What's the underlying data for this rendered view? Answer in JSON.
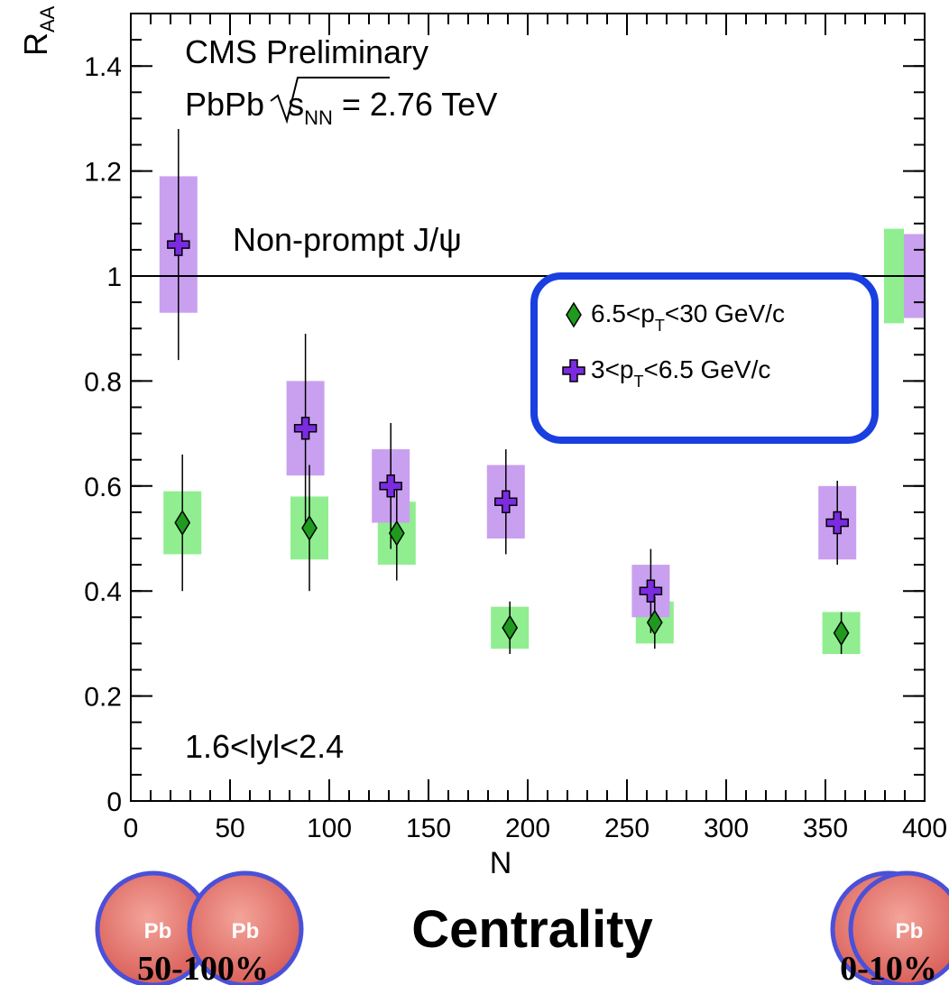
{
  "chart_data": {
    "type": "errorbar",
    "y_label": [
      "R",
      "AA"
    ],
    "x_label": "N",
    "annotations": {
      "experiment": "CMS Preliminary",
      "energy": [
        "PbPb",
        "s",
        "NN",
        " = 2.76 TeV"
      ],
      "particle": "Non-prompt J/ψ",
      "rapidity": "1.6<lyl<2.4"
    },
    "xlim": [
      0,
      400
    ],
    "ylim": [
      0,
      1.5
    ],
    "xticks": [
      0,
      50,
      100,
      150,
      200,
      250,
      300,
      350,
      400
    ],
    "yticks": [
      0,
      0.2,
      0.4,
      0.6,
      0.8,
      1,
      1.2,
      1.4
    ],
    "reference_line": 1,
    "series": [
      {
        "name": [
          "6.5<p",
          "T",
          "<30 GeV/c"
        ],
        "marker": "diamond",
        "color": "#1f9a1f",
        "box_color": "#90ee90",
        "x": [
          26,
          90,
          134,
          191,
          264,
          358
        ],
        "values": [
          0.53,
          0.52,
          0.51,
          0.33,
          0.34,
          0.32
        ],
        "errors": [
          0.13,
          0.12,
          0.09,
          0.05,
          0.05,
          0.04
        ],
        "sys_errors": [
          0.06,
          0.06,
          0.06,
          0.04,
          0.04,
          0.04
        ],
        "global_uncertainty": 0.09
      },
      {
        "name": [
          "3<p",
          "T",
          "<6.5 GeV/c"
        ],
        "marker": "cross",
        "color": "#7b2be0",
        "box_color": "#c9a0f0",
        "x": [
          24,
          88,
          131,
          189,
          262,
          356
        ],
        "values": [
          1.06,
          0.71,
          0.6,
          0.57,
          0.4,
          0.53
        ],
        "errors": [
          0.22,
          0.18,
          0.12,
          0.1,
          0.08,
          0.08
        ],
        "sys_errors": [
          0.13,
          0.09,
          0.07,
          0.07,
          0.05,
          0.07
        ],
        "global_uncertainty": 0.08
      }
    ]
  },
  "centrality_panel": {
    "title": "Centrality",
    "nucleus": [
      "Pb",
      "Pb",
      "Pb"
    ],
    "peripheral": "50-100%",
    "central": "0-10%"
  }
}
